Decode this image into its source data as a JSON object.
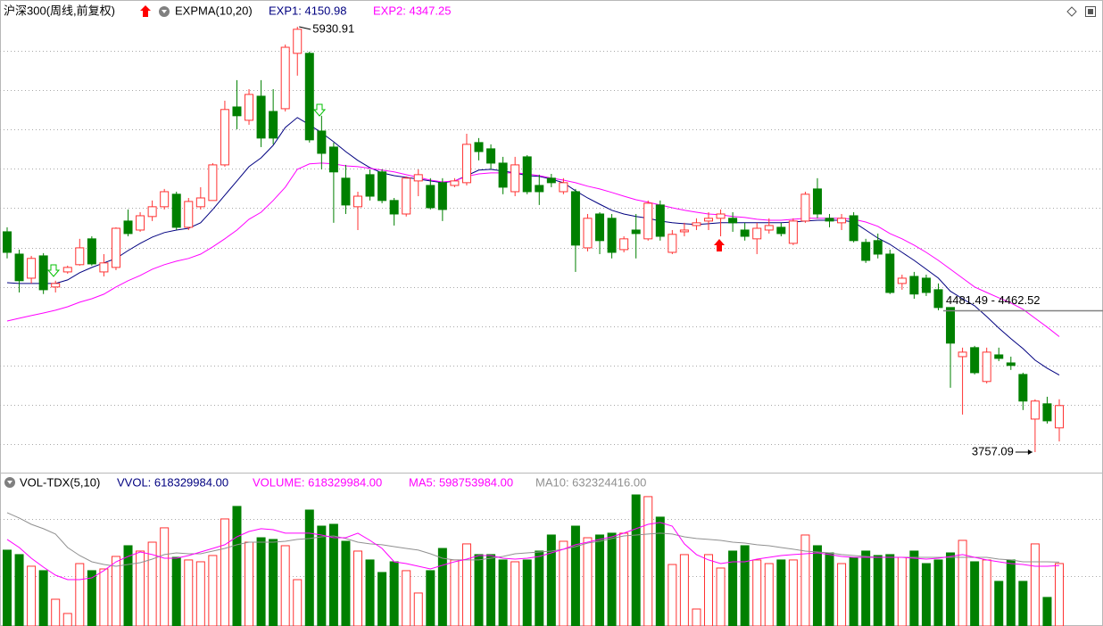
{
  "chart_data": [
    {
      "type": "candlestick",
      "title": "沪深300(周线,前复权)",
      "indicator": "EXPMA(10,20)",
      "up_color": "#ff3232",
      "down_color": "#008000",
      "open": [
        4883,
        4769,
        4646,
        4760,
        4601,
        4678,
        4715,
        4847,
        4678,
        4701,
        4938,
        4892,
        4961,
        5011,
        5075,
        4906,
        5011,
        5043,
        5225,
        5521,
        5453,
        5576,
        5498,
        5512,
        5795,
        5795,
        5398,
        5316,
        5157,
        5011,
        5175,
        5189,
        5043,
        4974,
        5143,
        5120,
        5134,
        5120,
        5134,
        5339,
        5307,
        5234,
        5088,
        5266,
        5120,
        5157,
        5088,
        5088,
        4801,
        4974,
        4952,
        4792,
        4892,
        4847,
        5020,
        4778,
        4883,
        4915,
        4938,
        4952,
        4952,
        4892,
        4847,
        4892,
        4906,
        4824,
        4938,
        5102,
        4952,
        4929,
        4965,
        4829,
        4838,
        4769,
        4619,
        4655,
        4646,
        4587,
        4496,
        4245,
        4291,
        4118,
        4254,
        4213,
        4154,
        3926,
        4004,
        3881
      ],
      "high": [
        4906,
        4792,
        4760,
        4774,
        4633,
        4710,
        4847,
        4860,
        4769,
        4906,
        4997,
        4983,
        5043,
        5102,
        5088,
        5056,
        5111,
        5234,
        5553,
        5658,
        5612,
        5658,
        5612,
        5840,
        5930.91,
        5804,
        5476,
        5339,
        5225,
        5088,
        5202,
        5202,
        5056,
        5166,
        5202,
        5157,
        5157,
        5157,
        5384,
        5362,
        5330,
        5266,
        5266,
        5275,
        5175,
        5179,
        5157,
        5102,
        4974,
        4983,
        4974,
        4860,
        4974,
        5043,
        5043,
        4892,
        4929,
        4952,
        4983,
        4997,
        4983,
        4929,
        4929,
        4952,
        4929,
        4952,
        5088,
        5157,
        4974,
        4974,
        4983,
        4847,
        4874,
        4792,
        4664,
        4678,
        4664,
        4619,
        4496,
        4291,
        4300,
        4291,
        4291,
        4245,
        4163,
        4027,
        4040,
        4027
      ],
      "low": [
        4747,
        4573,
        4619,
        4565,
        4573,
        4669,
        4710,
        4710,
        4655,
        4687,
        4860,
        4883,
        4938,
        4997,
        4892,
        4892,
        4997,
        5043,
        5216,
        5407,
        5430,
        5316,
        5330,
        5498,
        5681,
        5339,
        5202,
        4929,
        4974,
        4892,
        5043,
        5029,
        4915,
        4961,
        5065,
        4997,
        4938,
        5111,
        5120,
        5248,
        5202,
        5075,
        5065,
        5075,
        5020,
        5111,
        5075,
        4678,
        4783,
        4769,
        4747,
        4778,
        4747,
        4838,
        4838,
        4769,
        4860,
        4892,
        4892,
        4860,
        4883,
        4838,
        4769,
        4874,
        4860,
        4815,
        4929,
        4952,
        4906,
        4892,
        4829,
        4724,
        4747,
        4565,
        4587,
        4541,
        4555,
        4482,
        4086,
        3949,
        4154,
        4108,
        4222,
        4177,
        3972,
        3757.09,
        3903,
        3812
      ],
      "close": [
        4778,
        4633,
        4747,
        4587,
        4619,
        4701,
        4801,
        4719,
        4724,
        4901,
        4874,
        4965,
        5011,
        5088,
        4906,
        5038,
        5056,
        5225,
        5508,
        5476,
        5585,
        5362,
        5362,
        5826,
        5918,
        5353,
        5284,
        5189,
        5020,
        5065,
        5065,
        5043,
        4974,
        5157,
        5175,
        5006,
        4997,
        5143,
        5330,
        5293,
        5234,
        5111,
        5225,
        5088,
        5088,
        5134,
        5134,
        4815,
        4952,
        4838,
        4778,
        4847,
        4874,
        5029,
        4860,
        4870,
        4892,
        4929,
        4952,
        4974,
        4929,
        4860,
        4901,
        4915,
        4874,
        4938,
        5075,
        4974,
        4938,
        4952,
        4838,
        4737,
        4769,
        4573,
        4646,
        4565,
        4573,
        4496,
        4314,
        4268,
        4163,
        4268,
        4236,
        4200,
        4018,
        4018,
        3917,
        3995
      ],
      "series": [
        {
          "name": "EXP1: 4150.98",
          "color": "#000080",
          "values": [
            4623,
            4619,
            4619,
            4619,
            4619,
            4637,
            4674,
            4701,
            4724,
            4747,
            4787,
            4824,
            4856,
            4879,
            4892,
            4901,
            4929,
            4997,
            5070,
            5143,
            5216,
            5261,
            5325,
            5416,
            5467,
            5430,
            5389,
            5343,
            5293,
            5248,
            5211,
            5184,
            5170,
            5161,
            5152,
            5143,
            5134,
            5143,
            5170,
            5198,
            5202,
            5193,
            5184,
            5170,
            5166,
            5152,
            5134,
            5093,
            5056,
            5024,
            4993,
            4974,
            4961,
            4952,
            4938,
            4929,
            4924,
            4920,
            4924,
            4929,
            4929,
            4929,
            4929,
            4929,
            4929,
            4933,
            4938,
            4942,
            4942,
            4942,
            4933,
            4892,
            4851,
            4819,
            4778,
            4737,
            4692,
            4646,
            4579,
            4541,
            4505,
            4450,
            4391,
            4337,
            4286,
            4227,
            4186,
            4150.98
          ]
        },
        {
          "name": "EXP2: 4347.25",
          "color": "#ff00ff",
          "values": [
            4427,
            4441,
            4455,
            4468,
            4482,
            4500,
            4523,
            4541,
            4564,
            4601,
            4633,
            4660,
            4692,
            4715,
            4733,
            4747,
            4769,
            4806,
            4847,
            4892,
            4947,
            4983,
            5043,
            5111,
            5202,
            5230,
            5234,
            5230,
            5220,
            5216,
            5207,
            5198,
            5189,
            5175,
            5161,
            5147,
            5138,
            5143,
            5166,
            5179,
            5184,
            5184,
            5184,
            5179,
            5170,
            5157,
            5147,
            5134,
            5116,
            5102,
            5084,
            5065,
            5047,
            5034,
            5020,
            5006,
            4993,
            4983,
            4974,
            4970,
            4961,
            4956,
            4947,
            4942,
            4942,
            4947,
            4952,
            4952,
            4952,
            4952,
            4947,
            4933,
            4911,
            4874,
            4847,
            4815,
            4778,
            4737,
            4692,
            4646,
            4601,
            4573,
            4546,
            4519,
            4487,
            4441,
            4396,
            4347.25
          ]
        }
      ],
      "high_label": 5930.91,
      "low_label": 3757.09,
      "hline": {
        "value": 4481.49,
        "label": "4481.49 - 4462.52"
      }
    },
    {
      "type": "volume",
      "title": "VOL-TDX(5,10)",
      "vvol_label": "VVOL: 618329984.00",
      "value_name": "VOLUME: 618329984.00",
      "color": "#ff00ff",
      "values": [
        751000000,
        707000000,
        592000000,
        548000000,
        265000000,
        124000000,
        618000000,
        548000000,
        565000000,
        689000000,
        795000000,
        742000000,
        830000000,
        972000000,
        680000000,
        654000000,
        636000000,
        698000000,
        1060000000,
        1184000000,
        830000000,
        874000000,
        857000000,
        795000000,
        459000000,
        1148000000,
        989000000,
        1007000000,
        839000000,
        742000000,
        654000000,
        530000000,
        636000000,
        548000000,
        327000000,
        548000000,
        768000000,
        654000000,
        813000000,
        707000000,
        707000000,
        654000000,
        636000000,
        654000000,
        742000000,
        901000000,
        839000000,
        989000000,
        874000000,
        901000000,
        919000000,
        919000000,
        1298000000,
        1281000000,
        1078000000,
        609000000,
        707000000,
        168000000,
        707000000,
        574000000,
        742000000,
        795000000,
        654000000,
        618000000,
        654000000,
        654000000,
        901000000,
        795000000,
        724000000,
        618000000,
        680000000,
        742000000,
        698000000,
        707000000,
        680000000,
        742000000,
        618000000,
        654000000,
        724000000,
        848000000,
        636000000,
        654000000,
        442000000,
        654000000,
        442000000,
        813000000,
        283000000,
        618329984
      ],
      "series": [
        {
          "name": "MA5: 598753984.00",
          "color": "#ff00ff",
          "values": [
            857000000,
            777000000,
            671000000,
            583000000,
            503000000,
            459000000,
            459000000,
            477000000,
            548000000,
            636000000,
            689000000,
            733000000,
            707000000,
            671000000,
            671000000,
            698000000,
            733000000,
            768000000,
            804000000,
            883000000,
            936000000,
            963000000,
            954000000,
            919000000,
            919000000,
            919000000,
            901000000,
            874000000,
            874000000,
            919000000,
            848000000,
            768000000,
            636000000,
            618000000,
            592000000,
            565000000,
            601000000,
            636000000,
            662000000,
            698000000,
            698000000,
            671000000,
            662000000,
            671000000,
            689000000,
            724000000,
            760000000,
            804000000,
            830000000,
            857000000,
            883000000,
            919000000,
            963000000,
            1007000000,
            1025000000,
            989000000,
            813000000,
            707000000,
            654000000,
            618000000,
            636000000,
            636000000,
            662000000,
            680000000,
            698000000,
            707000000,
            715000000,
            724000000,
            707000000,
            689000000,
            680000000,
            680000000,
            680000000,
            680000000,
            680000000,
            671000000,
            662000000,
            671000000,
            689000000,
            707000000,
            680000000,
            654000000,
            636000000,
            618000000,
            609000000,
            592000000,
            592000000,
            598753984
          ]
        },
        {
          "name": "MA10: 632324416.00",
          "color": "#909090",
          "values": [
            1122000000,
            1069000000,
            1007000000,
            963000000,
            910000000,
            777000000,
            698000000,
            636000000,
            609000000,
            592000000,
            609000000,
            627000000,
            662000000,
            707000000,
            724000000,
            715000000,
            715000000,
            742000000,
            768000000,
            804000000,
            830000000,
            830000000,
            830000000,
            839000000,
            857000000,
            866000000,
            883000000,
            892000000,
            866000000,
            830000000,
            813000000,
            804000000,
            786000000,
            768000000,
            751000000,
            715000000,
            671000000,
            654000000,
            654000000,
            654000000,
            671000000,
            689000000,
            715000000,
            724000000,
            733000000,
            742000000,
            760000000,
            786000000,
            821000000,
            839000000,
            866000000,
            892000000,
            901000000,
            910000000,
            919000000,
            910000000,
            883000000,
            866000000,
            857000000,
            848000000,
            830000000,
            821000000,
            804000000,
            795000000,
            777000000,
            760000000,
            742000000,
            733000000,
            724000000,
            707000000,
            698000000,
            689000000,
            680000000,
            680000000,
            680000000,
            680000000,
            680000000,
            680000000,
            680000000,
            680000000,
            680000000,
            680000000,
            662000000,
            654000000,
            636000000,
            636000000,
            636000000,
            632324416
          ]
        }
      ]
    }
  ]
}
